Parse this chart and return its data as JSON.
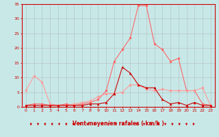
{
  "x": [
    0,
    1,
    2,
    3,
    4,
    5,
    6,
    7,
    8,
    9,
    10,
    11,
    12,
    13,
    14,
    15,
    16,
    17,
    18,
    19,
    20,
    21,
    22,
    23
  ],
  "line1": [
    5.5,
    10.5,
    8.5,
    1.0,
    0.5,
    0.5,
    1.0,
    1.5,
    2.0,
    3.5,
    4.5,
    4.5,
    5.0,
    7.5,
    7.5,
    6.0,
    5.5,
    6.0,
    5.5,
    5.5,
    5.5,
    5.5,
    6.5,
    0.5
  ],
  "line2": [
    0.5,
    0.5,
    0.5,
    0.5,
    0.5,
    0.5,
    0.5,
    0.5,
    1.0,
    1.0,
    1.5,
    4.5,
    13.5,
    11.5,
    7.5,
    6.5,
    6.5,
    2.5,
    1.0,
    1.5,
    0.5,
    1.5,
    0.5,
    0.5
  ],
  "line3": [
    0.5,
    1.0,
    1.0,
    0.5,
    0.5,
    1.0,
    0.5,
    1.0,
    1.5,
    2.5,
    5.5,
    15.5,
    19.5,
    23.5,
    34.5,
    34.5,
    21.5,
    19.5,
    15.5,
    16.5,
    5.5,
    5.5,
    1.0,
    0.5
  ],
  "bg_color": "#c8e8e8",
  "grid_color": "#aaaaaa",
  "line1_color": "#ff9999",
  "line2_color": "#cc0000",
  "line3_color": "#ff6666",
  "marker_size": 2,
  "xlabel": "Vent moyen/en rafales ( km/h )",
  "ylim": [
    0,
    35
  ],
  "yticks": [
    0,
    5,
    10,
    15,
    20,
    25,
    30,
    35
  ],
  "axis_color": "#cc0000",
  "tick_color": "#cc0000",
  "label_color": "#cc0000"
}
